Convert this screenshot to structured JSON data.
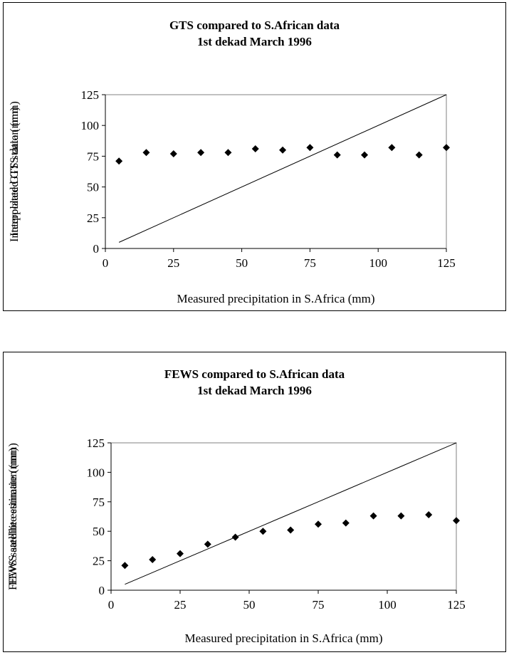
{
  "chart_data": [
    {
      "type": "scatter",
      "title": "GTS compared to S.African data",
      "subtitle": "1st dekad March 1996",
      "xlabel": "Measured precipitation in S.Africa (mm)",
      "ylabel": "Interpolated GTS data (mm)",
      "ylabel_overprint": "Interpolated GTS station (mm)",
      "xlim": [
        0,
        125
      ],
      "ylim": [
        0,
        125
      ],
      "xticks": [
        0,
        25,
        50,
        75,
        100,
        125
      ],
      "yticks": [
        0,
        25,
        50,
        75,
        100,
        125
      ],
      "grid": false,
      "series": [
        {
          "type": "scatter",
          "x": [
            5,
            15,
            25,
            35,
            45,
            55,
            65,
            75,
            85,
            95,
            105,
            115,
            125
          ],
          "y": [
            71,
            78,
            77,
            78,
            78,
            81,
            80,
            82,
            76,
            76,
            82,
            76,
            82
          ]
        },
        {
          "type": "line",
          "x": [
            5,
            125
          ],
          "y": [
            5,
            125
          ]
        }
      ]
    },
    {
      "type": "scatter",
      "title": "FEWS compared to S.African data",
      "subtitle": "1st dekad March 1996",
      "xlabel": "Measured precipitation in S.Africa (mm)",
      "ylabel": "FEWS satellite estimation (mm)",
      "ylabel_overprint": "FEWS satellite estimate (mm)",
      "xlim": [
        0,
        125
      ],
      "ylim": [
        0,
        125
      ],
      "xticks": [
        0,
        25,
        50,
        75,
        100,
        125
      ],
      "yticks": [
        0,
        25,
        50,
        75,
        100,
        125
      ],
      "grid": false,
      "series": [
        {
          "type": "scatter",
          "x": [
            5,
            15,
            25,
            35,
            45,
            55,
            65,
            75,
            85,
            95,
            105,
            115,
            125
          ],
          "y": [
            21,
            26,
            31,
            39,
            45,
            50,
            51,
            56,
            57,
            63,
            63,
            64,
            59
          ]
        },
        {
          "type": "line",
          "x": [
            5,
            15,
            25,
            35,
            45,
            55,
            65,
            75,
            85,
            95,
            105,
            115,
            125
          ],
          "y": [
            5,
            15,
            25,
            35,
            45,
            55,
            65,
            75,
            85,
            95,
            105,
            115,
            125
          ]
        }
      ]
    }
  ]
}
